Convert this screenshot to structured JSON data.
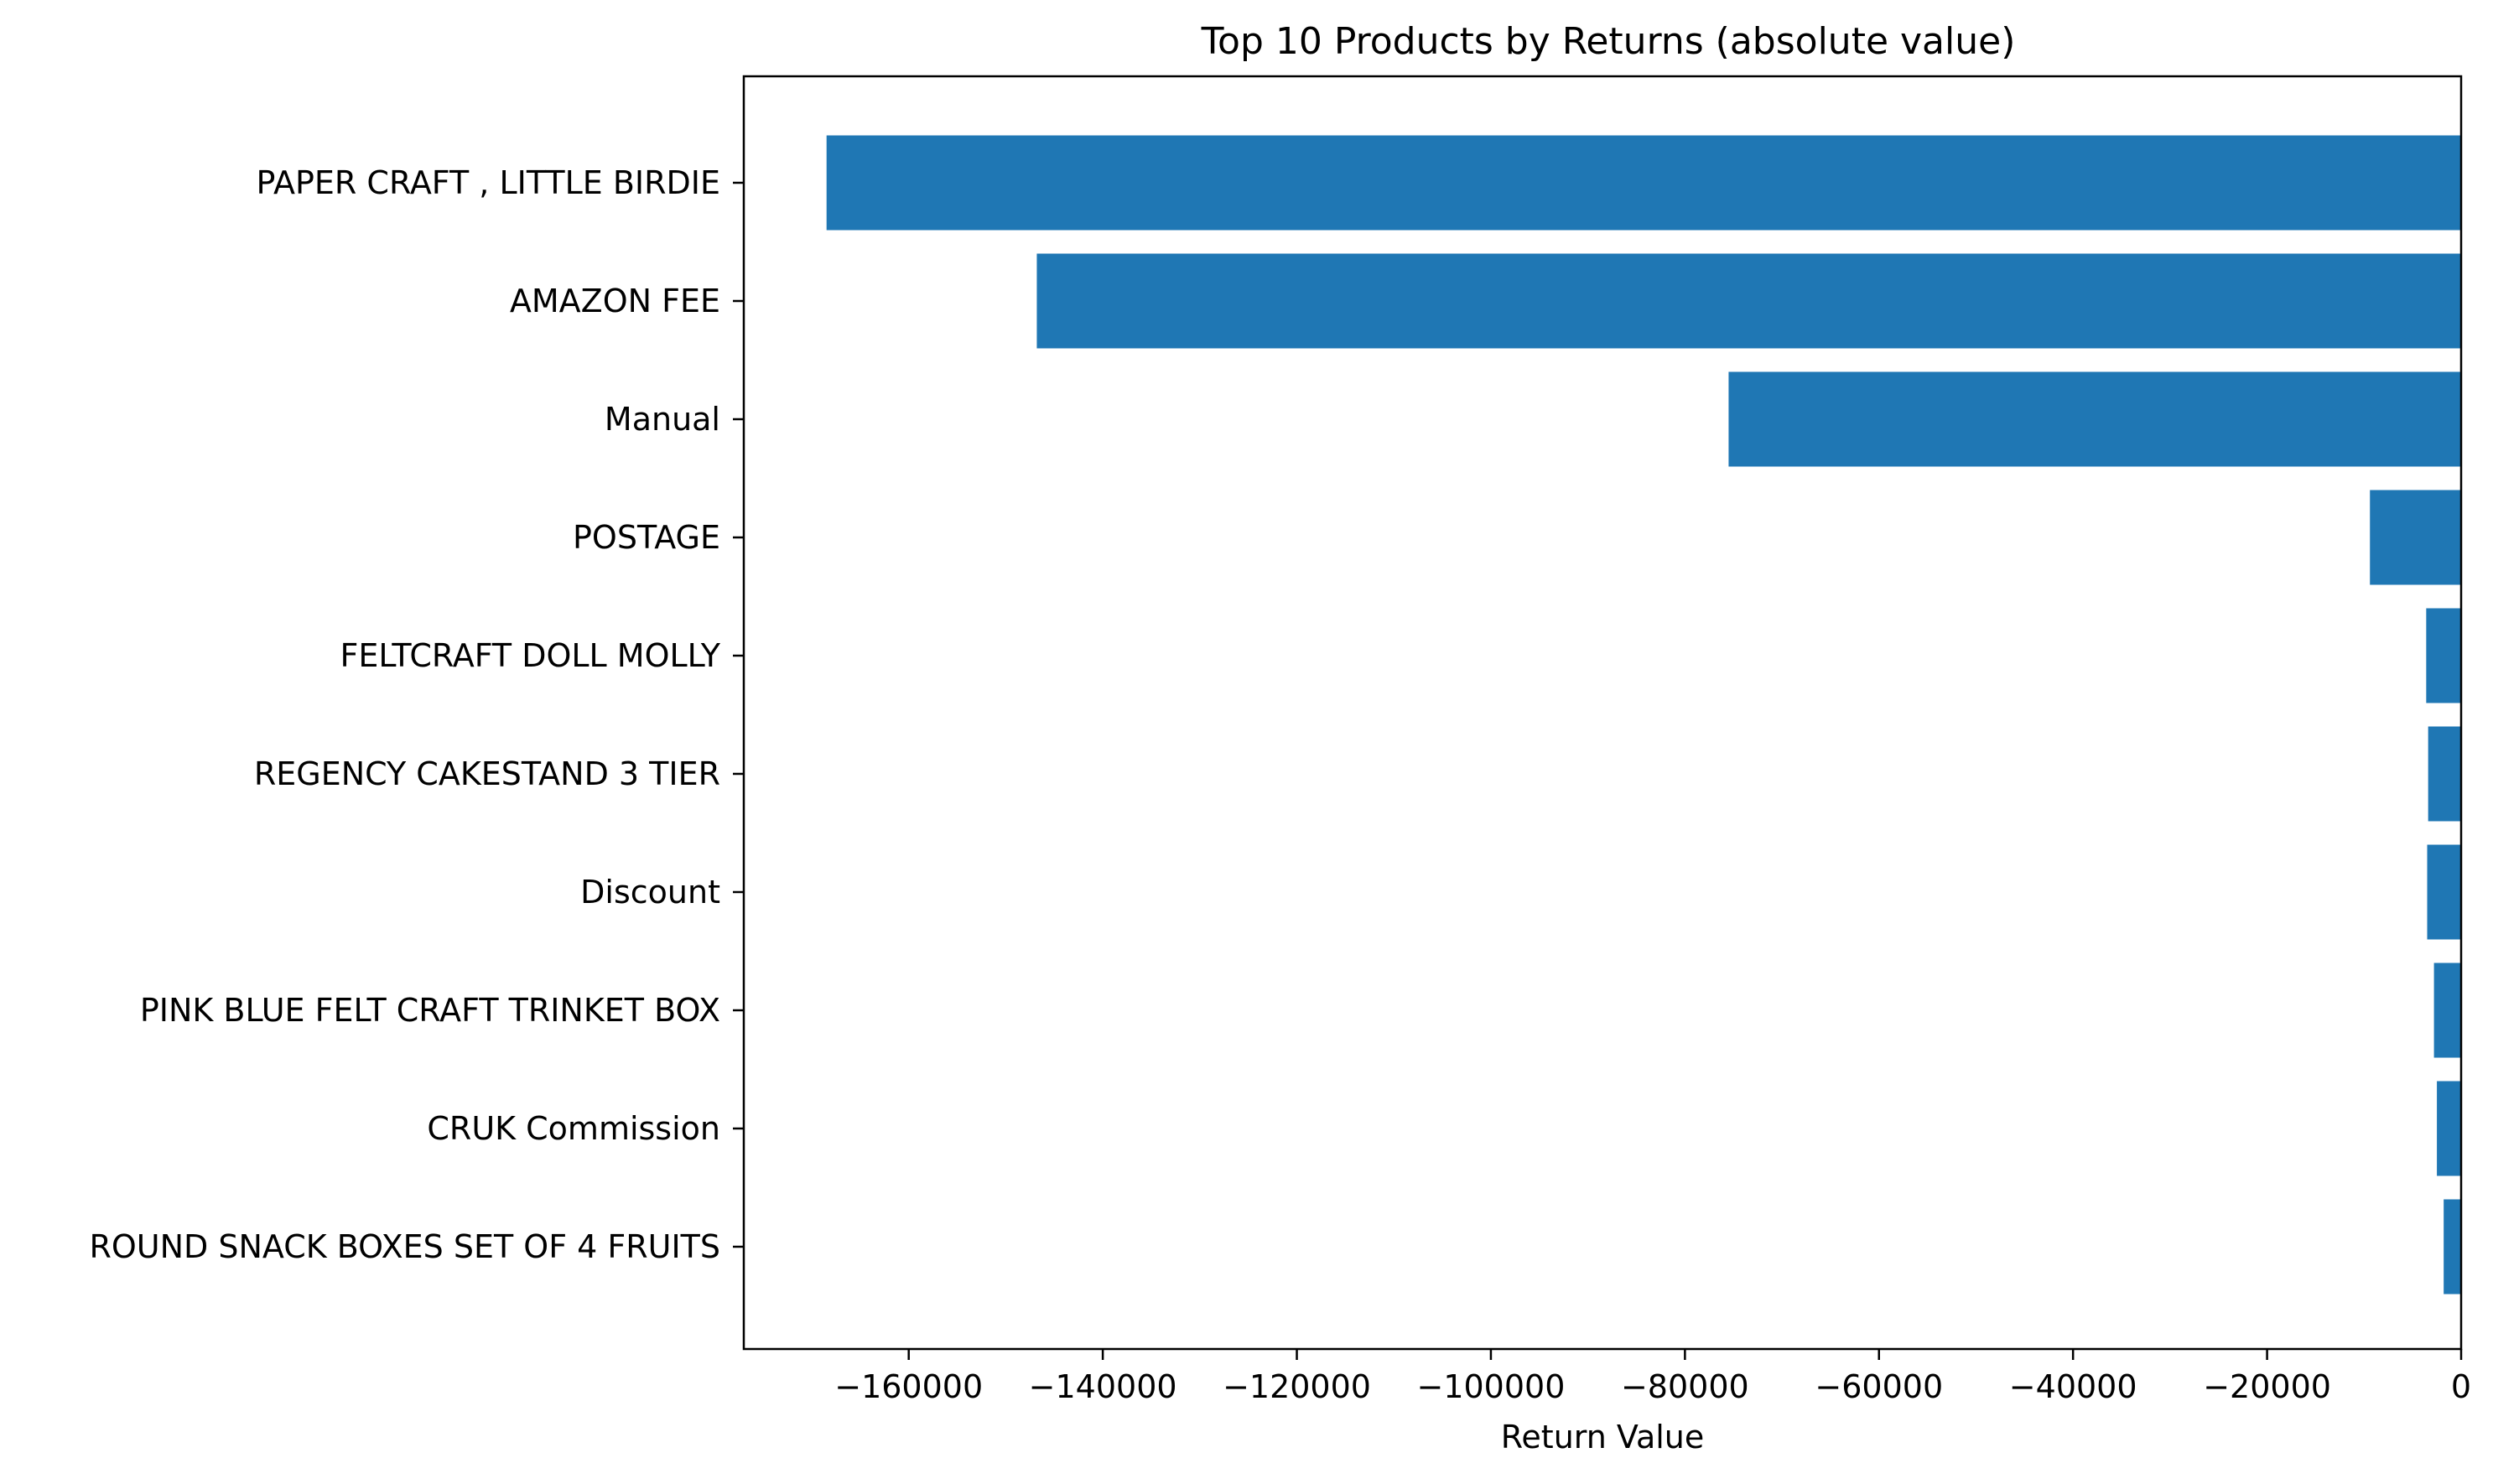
{
  "chart_data": {
    "type": "bar",
    "orientation": "horizontal",
    "title": "Top 10 Products by Returns (absolute value)",
    "xlabel": "Return Value",
    "ylabel": "",
    "xlim": [
      -177000,
      0
    ],
    "x_ticks": [
      -160000,
      -140000,
      -120000,
      -100000,
      -80000,
      -60000,
      -40000,
      -20000,
      0
    ],
    "x_tick_labels": [
      "−160000",
      "−140000",
      "−120000",
      "−100000",
      "−80000",
      "−60000",
      "−40000",
      "−20000",
      "0"
    ],
    "categories": [
      "PAPER CRAFT , LITTLE BIRDIE",
      "AMAZON FEE",
      "Manual",
      "POSTAGE",
      "FELTCRAFT DOLL MOLLY",
      "REGENCY CAKESTAND 3 TIER",
      "Discount",
      "PINK BLUE FELT CRAFT TRINKET BOX",
      "CRUK Commission",
      "ROUND SNACK BOXES SET OF 4 FRUITS"
    ],
    "values": [
      -168470,
      -146800,
      -75500,
      -9400,
      -3600,
      -3400,
      -3500,
      -2800,
      -2500,
      -1800
    ],
    "bar_color": "#1f77b4",
    "grid": false,
    "legend": "none"
  }
}
